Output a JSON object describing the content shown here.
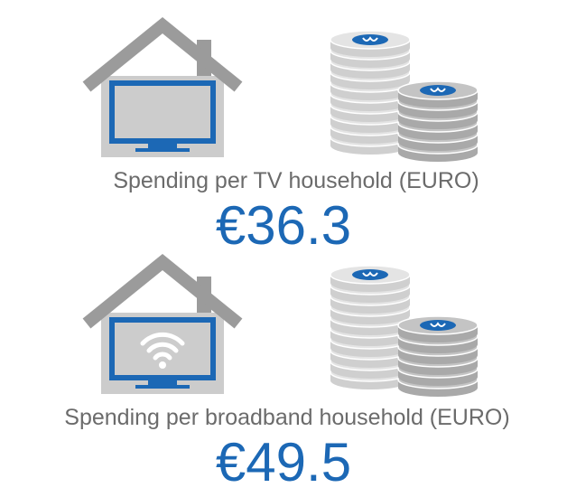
{
  "sections": [
    {
      "label": "Spending per TV household (EURO)",
      "value": "€36.3"
    },
    {
      "label": "Spending per broadband household (EURO)",
      "value": "€49.5"
    }
  ]
}
